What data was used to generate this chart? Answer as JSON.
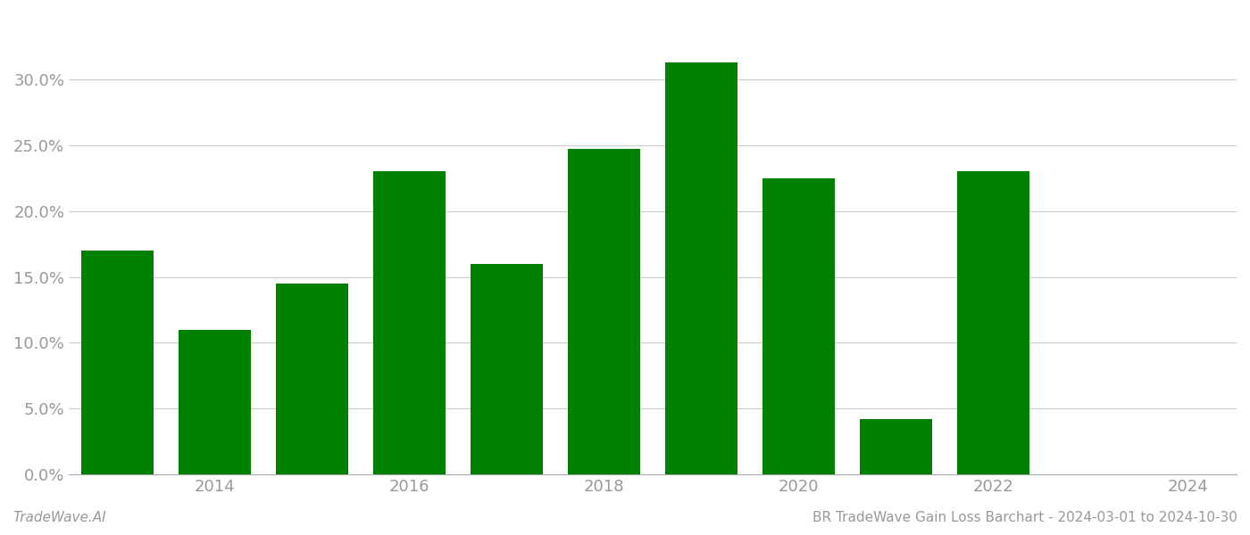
{
  "years": [
    2013,
    2014,
    2015,
    2016,
    2017,
    2018,
    2019,
    2020,
    2021,
    2022,
    2023
  ],
  "values": [
    0.17,
    0.11,
    0.145,
    0.23,
    0.16,
    0.247,
    0.313,
    0.225,
    0.042,
    0.23,
    0.0
  ],
  "bar_color": "#008000",
  "background_color": "#ffffff",
  "ylim": [
    0,
    0.35
  ],
  "ytick_values": [
    0.0,
    0.05,
    0.1,
    0.15,
    0.2,
    0.25,
    0.3
  ],
  "xtick_values": [
    2014,
    2016,
    2018,
    2020,
    2022,
    2024
  ],
  "xlim": [
    2012.5,
    2024.5
  ],
  "grid_color": "#cccccc",
  "axis_color": "#aaaaaa",
  "tick_label_color": "#999999",
  "footer_left": "TradeWave.AI",
  "footer_right": "BR TradeWave Gain Loss Barchart - 2024-03-01 to 2024-10-30",
  "footer_fontsize": 11,
  "bar_width": 0.75
}
